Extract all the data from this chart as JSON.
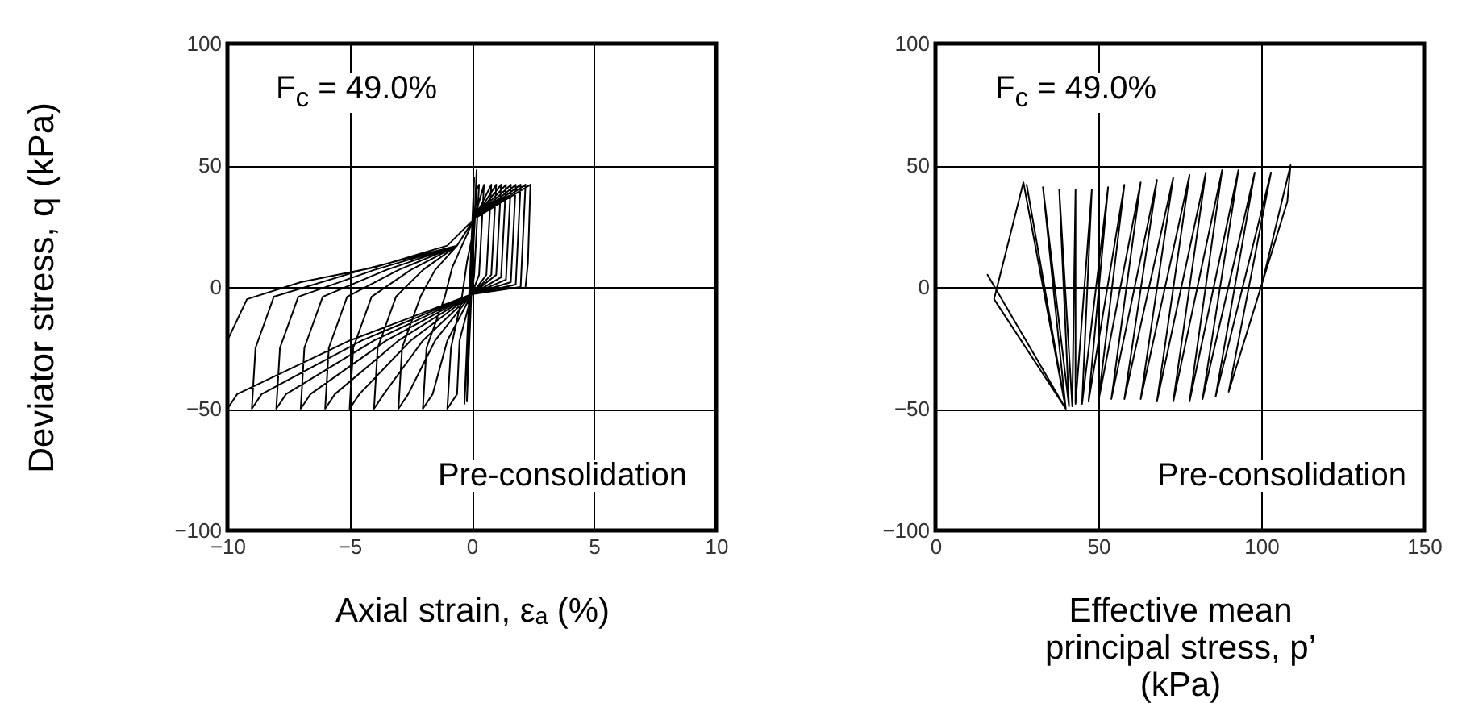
{
  "chart_data": [
    {
      "type": "line",
      "xlabel": "Axial strain, εₐ (%)",
      "ylabel": "Deviator stress, q (kPa)",
      "annotations": [
        "F$_{c}$ = 49.0%",
        "Pre-consolidation"
      ],
      "xlim": [
        -10,
        10
      ],
      "xticks": [
        -10,
        -5,
        0,
        5,
        10
      ],
      "ylim": [
        -100,
        100
      ],
      "yticks": [
        -100,
        -50,
        0,
        50,
        100
      ],
      "grid": true,
      "series": [
        {
          "color": "#000000",
          "x": [
            0,
            0.2,
            -0.2,
            0.1,
            -0.3,
            0.2,
            0.3,
            0.1,
            0,
            -0.5,
            -0.6,
            -1,
            -0.85,
            -0.4,
            -0.2,
            0,
            0.1,
            0.5,
            0.3,
            0,
            -1,
            -1.6,
            -2,
            -1.85,
            -1.1,
            -0.8,
            -0.4,
            0.1,
            0.8,
            0.6,
            0,
            -1.5,
            -2.6,
            -3,
            -2.85,
            -2.1,
            -1.5,
            -0.6,
            0.1,
            1.0,
            0.8,
            0,
            -2,
            -3.6,
            -4,
            -3.85,
            -3.1,
            -2,
            -0.6,
            0.1,
            1.2,
            1.0,
            0,
            -2.5,
            -4.6,
            -5,
            -4.85,
            -4.1,
            -2.5,
            -0.6,
            0.1,
            1.4,
            1.2,
            0,
            -3,
            -5.6,
            -6,
            -5.85,
            -5.1,
            -3,
            -0.6,
            0.1,
            1.6,
            1.4,
            0,
            -3.5,
            -6.6,
            -7,
            -6.85,
            -6.1,
            -3.5,
            -0.6,
            0.1,
            1.8,
            1.6,
            0,
            -4,
            -7.6,
            -8,
            -7.85,
            -7.1,
            -4,
            -0.6,
            0.1,
            2.0,
            1.8,
            0,
            -4.5,
            -8.6,
            -9,
            -8.85,
            -8.1,
            -4.5,
            -0.6,
            0.1,
            2.2,
            2.0,
            0,
            -5,
            -9.6,
            -10,
            -10,
            -9.2,
            -7,
            -4,
            -1,
            0.1,
            2.4,
            2.3,
            2.2
          ],
          "values": [
            0,
            48,
            -47,
            45,
            -48,
            40,
            42,
            5,
            -3,
            -22,
            -44,
            -50,
            -25,
            -4,
            10,
            20,
            28,
            42,
            5,
            -3,
            -22,
            -44,
            -50,
            -25,
            -4,
            8,
            17,
            28,
            42,
            5,
            -3,
            -22,
            -44,
            -50,
            -25,
            -4,
            7,
            17,
            28,
            42,
            5,
            -3,
            -22,
            -44,
            -50,
            -25,
            -4,
            7,
            17,
            28,
            42,
            5,
            -3,
            -22,
            -44,
            -50,
            -25,
            -4,
            7,
            17,
            28,
            42,
            4,
            -3,
            -22,
            -44,
            -50,
            -25,
            -4,
            7,
            17,
            28,
            42,
            3,
            -3,
            -22,
            -44,
            -50,
            -25,
            -4,
            7,
            17,
            28,
            42,
            2,
            -3,
            -22,
            -44,
            -50,
            -25,
            -4,
            7,
            17,
            28,
            42,
            1,
            -3,
            -22,
            -44,
            -50,
            -25,
            -4,
            7,
            17,
            28,
            42,
            0,
            -3,
            -22,
            -44,
            -50,
            -22,
            -5,
            2,
            8,
            17,
            28,
            42,
            10,
            0
          ]
        }
      ]
    },
    {
      "type": "line",
      "xlabel": "Effective mean principal stress, p’ (kPa)",
      "annotations": [
        "F$_{c}$ = 49.0%",
        "Pre-consolidation"
      ],
      "xlim": [
        0,
        150
      ],
      "xticks": [
        0,
        50,
        100,
        150
      ],
      "ylim": [
        -100,
        100
      ],
      "yticks": [
        -100,
        -50,
        0,
        50,
        100
      ],
      "grid": true,
      "series": [
        {
          "color": "#000000",
          "x": [
            100,
            109,
            108,
            90,
            103,
            86,
            98,
            82,
            93,
            78,
            88,
            73,
            83,
            68,
            78,
            63,
            73,
            58,
            68,
            54,
            63,
            50,
            58,
            47,
            53,
            45,
            48,
            43,
            43,
            42,
            38,
            41,
            33,
            40,
            28,
            40,
            27,
            18,
            40,
            16
          ],
          "values": [
            0,
            50,
            35,
            -43,
            47,
            -45,
            47,
            -46,
            48,
            -47,
            48,
            -47,
            47,
            -47,
            46,
            -46,
            45,
            -46,
            44,
            -46,
            43,
            -47,
            42,
            -47,
            41,
            -48,
            40,
            -48,
            40,
            -49,
            40,
            -49,
            41,
            -50,
            42,
            -50,
            43,
            -5,
            -50,
            5
          ]
        }
      ]
    }
  ]
}
